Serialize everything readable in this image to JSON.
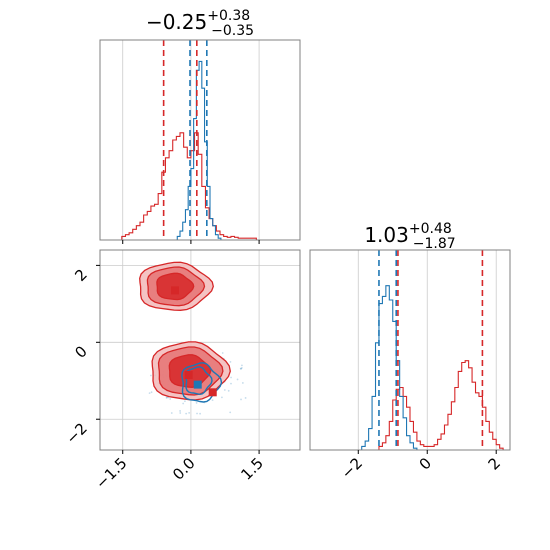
{
  "colors": {
    "red": "#d62728",
    "blue": "#1f77b4",
    "grid": "#cccccc",
    "axis": "#808080"
  },
  "chart_data": [
    {
      "type": "histogram",
      "panel": "top-left",
      "title_main": "−0.25",
      "title_sup": "+0.38",
      "title_sub": "−0.35",
      "xlim": [
        -2.0,
        2.4
      ],
      "ylim": [
        0,
        1.12
      ],
      "grid": true,
      "y_ticks_shown": false,
      "x_tick_labels_shown": false,
      "red_vlines": [
        -0.6,
        0.13
      ],
      "blue_vlines": [
        -0.02,
        0.35
      ],
      "series": [
        {
          "color": "red",
          "bin_edges": [
            -1.52,
            -1.44,
            -1.36,
            -1.28,
            -1.2,
            -1.12,
            -1.04,
            -0.96,
            -0.88,
            -0.8,
            -0.72,
            -0.64,
            -0.56,
            -0.48,
            -0.4,
            -0.32,
            -0.24,
            -0.16,
            -0.08,
            0.0,
            0.08,
            0.16,
            0.24,
            0.32,
            0.4,
            0.48,
            0.56,
            0.64,
            0.72,
            0.8,
            0.88,
            0.96,
            1.04,
            1.12,
            1.2,
            1.28,
            1.36,
            1.44,
            1.52,
            1.6
          ],
          "values": [
            0.02,
            0.03,
            0.04,
            0.06,
            0.08,
            0.1,
            0.14,
            0.16,
            0.19,
            0.2,
            0.26,
            0.38,
            0.46,
            0.5,
            0.56,
            0.58,
            0.6,
            0.52,
            0.46,
            0.5,
            0.6,
            0.48,
            0.3,
            0.18,
            0.12,
            0.08,
            0.05,
            0.03,
            0.02,
            0.015,
            0.02,
            0.015,
            0.01,
            0.01,
            0.01,
            0.01,
            0.01,
            0.0,
            0.0
          ]
        },
        {
          "color": "blue",
          "bin_edges": [
            -0.3,
            -0.24,
            -0.18,
            -0.12,
            -0.06,
            0.0,
            0.06,
            0.12,
            0.18,
            0.24,
            0.3,
            0.36,
            0.42,
            0.48,
            0.54,
            0.6,
            0.66
          ],
          "values": [
            0.02,
            0.05,
            0.1,
            0.17,
            0.3,
            0.4,
            0.68,
            0.95,
            1.0,
            0.85,
            0.55,
            0.3,
            0.12,
            0.08,
            0.03,
            0.01
          ]
        }
      ]
    },
    {
      "type": "histogram",
      "panel": "bottom-right",
      "title_main": "1.03",
      "title_sup": "+0.48",
      "title_sub": "−1.87",
      "xlim": [
        -3.4,
        2.4
      ],
      "ylim": [
        0,
        1.12
      ],
      "grid": true,
      "xticks": [
        -2,
        0,
        2
      ],
      "x_tick_labels": [
        "−2",
        "0",
        "2"
      ],
      "red_vlines": [
        -0.85,
        1.6
      ],
      "blue_vlines": [
        -1.4,
        -0.9
      ],
      "series": [
        {
          "color": "red",
          "bin_edges": [
            -1.4,
            -1.3,
            -1.2,
            -1.1,
            -1.0,
            -0.9,
            -0.8,
            -0.7,
            -0.6,
            -0.5,
            -0.4,
            -0.3,
            -0.2,
            -0.1,
            0.0,
            0.1,
            0.2,
            0.3,
            0.4,
            0.5,
            0.6,
            0.7,
            0.8,
            0.9,
            1.0,
            1.1,
            1.2,
            1.3,
            1.4,
            1.5,
            1.6,
            1.7,
            1.8,
            1.9,
            2.0,
            2.1,
            2.2,
            2.3
          ],
          "values": [
            0.02,
            0.04,
            0.08,
            0.16,
            0.28,
            0.34,
            0.35,
            0.3,
            0.24,
            0.16,
            0.1,
            0.05,
            0.03,
            0.02,
            0.02,
            0.02,
            0.03,
            0.06,
            0.09,
            0.14,
            0.2,
            0.27,
            0.35,
            0.44,
            0.49,
            0.5,
            0.46,
            0.38,
            0.32,
            0.3,
            0.24,
            0.16,
            0.1,
            0.06,
            0.03,
            0.01,
            0.0
          ]
        },
        {
          "color": "blue",
          "bin_edges": [
            -1.9,
            -1.8,
            -1.7,
            -1.6,
            -1.5,
            -1.4,
            -1.3,
            -1.2,
            -1.1,
            -1.0,
            -0.9,
            -0.8,
            -0.7,
            -0.6,
            -0.5,
            -0.4,
            -0.3
          ],
          "values": [
            0.02,
            0.05,
            0.12,
            0.3,
            0.6,
            0.82,
            0.86,
            0.92,
            0.84,
            0.72,
            0.5,
            0.3,
            0.18,
            0.08,
            0.04,
            0.01
          ]
        }
      ]
    },
    {
      "type": "contour",
      "panel": "bottom-left",
      "xlim": [
        -2.0,
        2.4
      ],
      "ylim": [
        -2.8,
        2.4
      ],
      "grid": true,
      "xticks": [
        -1.5,
        0.0,
        1.5
      ],
      "x_tick_labels": [
        "−1.5",
        "0.0",
        "1.5"
      ],
      "yticks": [
        -2,
        0,
        2
      ],
      "y_tick_labels": [
        "−2",
        "0",
        "2"
      ],
      "red_blobs": [
        {
          "center": [
            -0.37,
            1.45
          ],
          "levels": [
            [
              0.8,
              0.62
            ],
            [
              0.62,
              0.5
            ],
            [
              0.4,
              0.34
            ]
          ]
        },
        {
          "center": [
            -0.05,
            -0.75
          ],
          "levels": [
            [
              0.85,
              0.75
            ],
            [
              0.7,
              0.62
            ],
            [
              0.45,
              0.42
            ]
          ]
        }
      ],
      "blue_contours": [
        {
          "center": [
            0.2,
            -1.05
          ],
          "radii": [
            0.42,
            0.5
          ]
        },
        {
          "center": [
            0.15,
            -1.0
          ],
          "radii": [
            0.28,
            0.35
          ]
        }
      ],
      "markers": [
        {
          "color": "red",
          "x": -0.35,
          "y": 1.35
        },
        {
          "color": "red",
          "x": -0.05,
          "y": -0.85
        },
        {
          "color": "red",
          "x": 0.48,
          "y": -1.3
        },
        {
          "color": "blue",
          "x": 0.15,
          "y": -1.1
        }
      ]
    }
  ]
}
